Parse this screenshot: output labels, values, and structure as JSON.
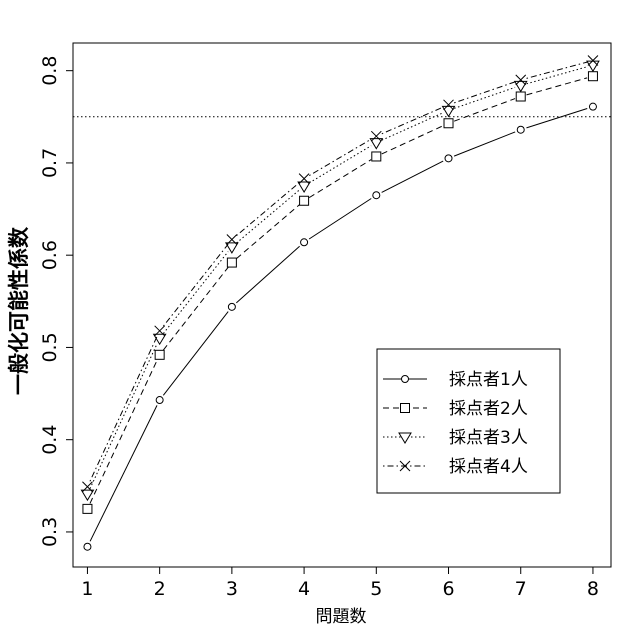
{
  "chart_data": {
    "type": "line",
    "xlabel": "問題数",
    "ylabel": "一般化可能性係数",
    "x": [
      1,
      2,
      3,
      4,
      5,
      6,
      7,
      8
    ],
    "xlim": [
      0.8,
      8.25
    ],
    "ylim": [
      0.262,
      0.83
    ],
    "xticks": [
      "1",
      "2",
      "3",
      "4",
      "5",
      "6",
      "7",
      "8"
    ],
    "yticks": [
      "0.3",
      "0.4",
      "0.5",
      "0.6",
      "0.7",
      "0.8"
    ],
    "reference_line": {
      "y": 0.75,
      "style": "dotted"
    },
    "grid": false,
    "legend_position": "bottom-right",
    "series": [
      {
        "name": "採点者1人",
        "marker": "circle",
        "dash": "solid",
        "values": [
          0.284,
          0.443,
          0.544,
          0.614,
          0.665,
          0.705,
          0.736,
          0.761
        ]
      },
      {
        "name": "採点者2人",
        "marker": "square",
        "dash": "dashed",
        "values": [
          0.325,
          0.492,
          0.592,
          0.659,
          0.707,
          0.743,
          0.772,
          0.794
        ]
      },
      {
        "name": "採点者3人",
        "marker": "triangle",
        "dash": "dotted",
        "values": [
          0.341,
          0.51,
          0.609,
          0.675,
          0.722,
          0.757,
          0.784,
          0.806
        ]
      },
      {
        "name": "採点者4人",
        "marker": "cross",
        "dash": "dash-dot",
        "values": [
          0.349,
          0.518,
          0.617,
          0.683,
          0.729,
          0.763,
          0.79,
          0.811
        ]
      }
    ]
  }
}
